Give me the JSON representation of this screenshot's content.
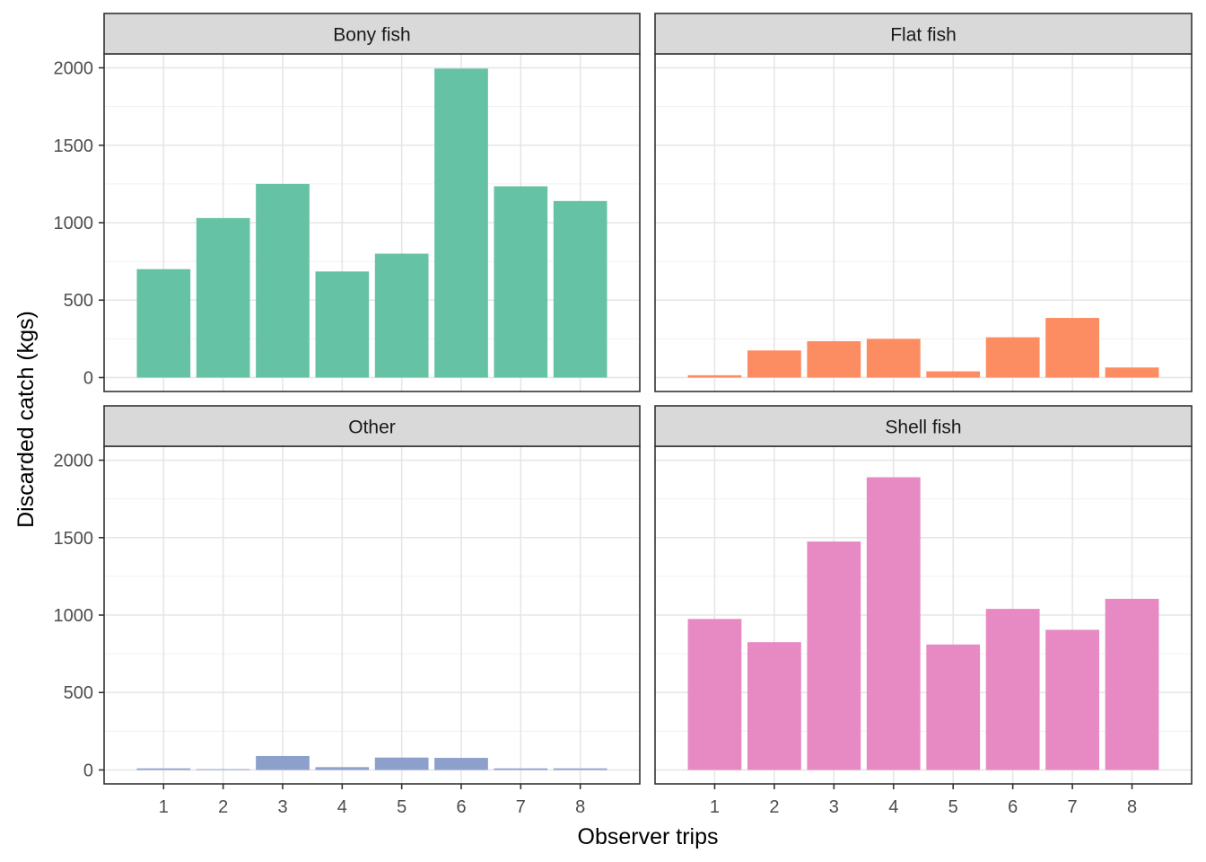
{
  "chart_data": {
    "type": "bar",
    "layout": "facet-wrap-2x2",
    "xlabel": "Observer trips",
    "ylabel": "Discarded catch (kgs)",
    "categories": [
      "1",
      "2",
      "3",
      "4",
      "5",
      "6",
      "7",
      "8"
    ],
    "ylim": [
      -90,
      2090
    ],
    "yticks": [
      0,
      500,
      1000,
      1500,
      2000
    ],
    "grid": true,
    "panels": [
      {
        "name": "Bony fish",
        "color": "#66c2a5",
        "values": [
          700,
          1030,
          1250,
          685,
          800,
          1995,
          1235,
          1140
        ]
      },
      {
        "name": "Flat fish",
        "color": "#fc8d62",
        "values": [
          15,
          175,
          235,
          250,
          40,
          260,
          385,
          65
        ]
      },
      {
        "name": "Other",
        "color": "#8da0cb",
        "values": [
          10,
          5,
          90,
          18,
          80,
          78,
          10,
          10
        ]
      },
      {
        "name": "Shell fish",
        "color": "#e78ac3",
        "values": [
          975,
          825,
          1475,
          1890,
          810,
          1040,
          905,
          1105
        ]
      }
    ]
  }
}
